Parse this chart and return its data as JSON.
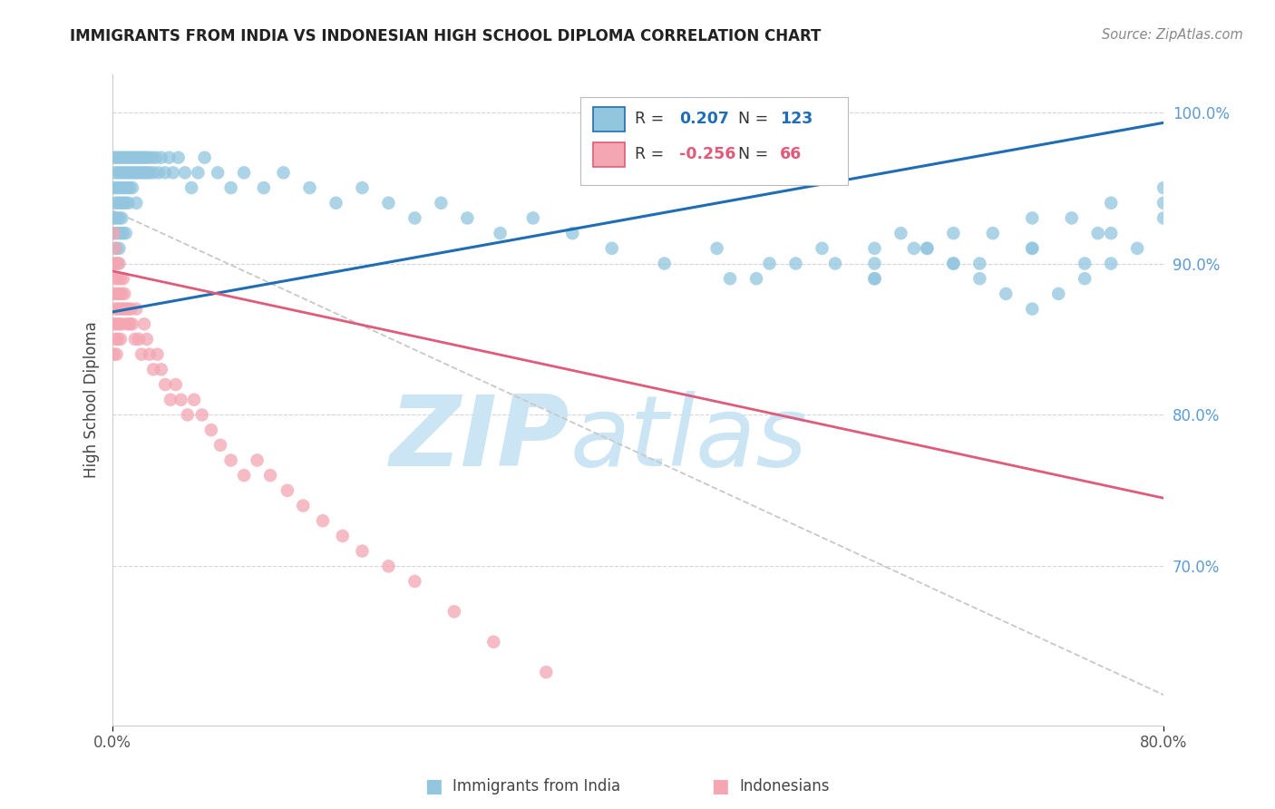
{
  "title": "IMMIGRANTS FROM INDIA VS INDONESIAN HIGH SCHOOL DIPLOMA CORRELATION CHART",
  "source": "Source: ZipAtlas.com",
  "ylabel": "High School Diploma",
  "legend_label1": "Immigrants from India",
  "legend_label2": "Indonesians",
  "R1": 0.207,
  "N1": 123,
  "R2": -0.256,
  "N2": 66,
  "xlim": [
    0.0,
    0.8
  ],
  "ylim": [
    0.595,
    1.025
  ],
  "y_ticks_right": [
    0.7,
    0.8,
    0.9,
    1.0
  ],
  "y_tick_labels_right": [
    "70.0%",
    "80.0%",
    "90.0%",
    "100.0%"
  ],
  "color_blue": "#92c5de",
  "color_blue_line": "#1f6db5",
  "color_pink": "#f4a6b2",
  "color_pink_line": "#e05a7a",
  "color_dashed": "#c8c8c8",
  "watermark_zip": "ZIP",
  "watermark_atlas": "atlas",
  "watermark_color": "#cce5f5",
  "background_color": "#ffffff",
  "india_trend_x": [
    0.0,
    0.8
  ],
  "india_trend_y": [
    0.868,
    0.993
  ],
  "indonesia_trend_x": [
    0.0,
    0.8
  ],
  "indonesia_trend_y": [
    0.895,
    0.745
  ],
  "dashed_trend_x": [
    0.0,
    0.8
  ],
  "dashed_trend_y": [
    0.935,
    0.615
  ],
  "india_x": [
    0.001,
    0.001,
    0.001,
    0.002,
    0.002,
    0.002,
    0.003,
    0.003,
    0.003,
    0.003,
    0.004,
    0.004,
    0.004,
    0.004,
    0.005,
    0.005,
    0.005,
    0.005,
    0.006,
    0.006,
    0.006,
    0.007,
    0.007,
    0.007,
    0.008,
    0.008,
    0.008,
    0.009,
    0.009,
    0.01,
    0.01,
    0.01,
    0.011,
    0.011,
    0.012,
    0.012,
    0.013,
    0.013,
    0.014,
    0.015,
    0.015,
    0.016,
    0.017,
    0.018,
    0.018,
    0.019,
    0.02,
    0.021,
    0.022,
    0.023,
    0.024,
    0.025,
    0.026,
    0.027,
    0.028,
    0.03,
    0.031,
    0.033,
    0.035,
    0.037,
    0.04,
    0.043,
    0.046,
    0.05,
    0.055,
    0.06,
    0.065,
    0.07,
    0.08,
    0.09,
    0.1,
    0.115,
    0.13,
    0.15,
    0.17,
    0.19,
    0.21,
    0.23,
    0.25,
    0.27,
    0.295,
    0.32,
    0.35,
    0.38,
    0.42,
    0.46,
    0.5,
    0.54,
    0.58,
    0.62,
    0.66,
    0.7,
    0.74,
    0.58,
    0.64,
    0.7,
    0.76,
    0.49,
    0.55,
    0.61,
    0.67,
    0.73,
    0.8,
    0.47,
    0.52,
    0.58,
    0.64,
    0.7,
    0.76,
    0.8,
    0.75,
    0.8,
    0.78,
    0.76,
    0.74,
    0.72,
    0.7,
    0.68,
    0.66,
    0.64,
    0.62,
    0.6,
    0.58
  ],
  "india_y": [
    0.97,
    0.95,
    0.93,
    0.96,
    0.94,
    0.92,
    0.97,
    0.95,
    0.93,
    0.91,
    0.96,
    0.94,
    0.92,
    0.9,
    0.97,
    0.95,
    0.93,
    0.91,
    0.96,
    0.94,
    0.92,
    0.97,
    0.95,
    0.93,
    0.96,
    0.94,
    0.92,
    0.97,
    0.95,
    0.96,
    0.94,
    0.92,
    0.97,
    0.95,
    0.96,
    0.94,
    0.97,
    0.95,
    0.96,
    0.97,
    0.95,
    0.96,
    0.97,
    0.96,
    0.94,
    0.97,
    0.96,
    0.97,
    0.96,
    0.97,
    0.96,
    0.97,
    0.96,
    0.97,
    0.96,
    0.97,
    0.96,
    0.97,
    0.96,
    0.97,
    0.96,
    0.97,
    0.96,
    0.97,
    0.96,
    0.95,
    0.96,
    0.97,
    0.96,
    0.95,
    0.96,
    0.95,
    0.96,
    0.95,
    0.94,
    0.95,
    0.94,
    0.93,
    0.94,
    0.93,
    0.92,
    0.93,
    0.92,
    0.91,
    0.9,
    0.91,
    0.9,
    0.91,
    0.9,
    0.91,
    0.9,
    0.91,
    0.9,
    0.89,
    0.9,
    0.91,
    0.92,
    0.89,
    0.9,
    0.91,
    0.92,
    0.93,
    0.94,
    0.89,
    0.9,
    0.91,
    0.92,
    0.93,
    0.94,
    0.95,
    0.92,
    0.93,
    0.91,
    0.9,
    0.89,
    0.88,
    0.87,
    0.88,
    0.89,
    0.9,
    0.91,
    0.92,
    0.89
  ],
  "indonesia_x": [
    0.001,
    0.001,
    0.001,
    0.001,
    0.001,
    0.002,
    0.002,
    0.002,
    0.002,
    0.003,
    0.003,
    0.003,
    0.003,
    0.004,
    0.004,
    0.004,
    0.005,
    0.005,
    0.005,
    0.006,
    0.006,
    0.006,
    0.007,
    0.007,
    0.008,
    0.008,
    0.009,
    0.01,
    0.011,
    0.012,
    0.013,
    0.014,
    0.015,
    0.017,
    0.018,
    0.02,
    0.022,
    0.024,
    0.026,
    0.028,
    0.031,
    0.034,
    0.037,
    0.04,
    0.044,
    0.048,
    0.052,
    0.057,
    0.062,
    0.068,
    0.075,
    0.082,
    0.09,
    0.1,
    0.11,
    0.12,
    0.133,
    0.145,
    0.16,
    0.175,
    0.19,
    0.21,
    0.23,
    0.26,
    0.29,
    0.33
  ],
  "indonesia_y": [
    0.92,
    0.9,
    0.88,
    0.86,
    0.84,
    0.91,
    0.89,
    0.87,
    0.85,
    0.9,
    0.88,
    0.86,
    0.84,
    0.89,
    0.87,
    0.85,
    0.9,
    0.88,
    0.86,
    0.89,
    0.87,
    0.85,
    0.88,
    0.86,
    0.89,
    0.87,
    0.88,
    0.87,
    0.86,
    0.87,
    0.86,
    0.87,
    0.86,
    0.85,
    0.87,
    0.85,
    0.84,
    0.86,
    0.85,
    0.84,
    0.83,
    0.84,
    0.83,
    0.82,
    0.81,
    0.82,
    0.81,
    0.8,
    0.81,
    0.8,
    0.79,
    0.78,
    0.77,
    0.76,
    0.77,
    0.76,
    0.75,
    0.74,
    0.73,
    0.72,
    0.71,
    0.7,
    0.69,
    0.67,
    0.65,
    0.63
  ]
}
